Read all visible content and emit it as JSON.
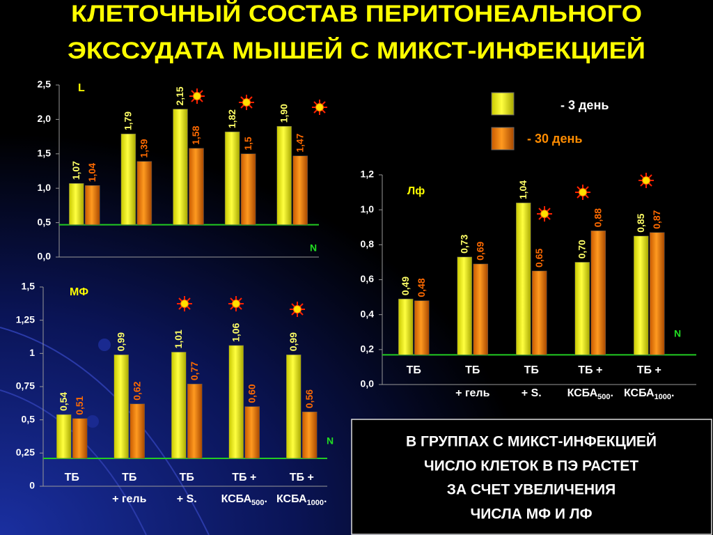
{
  "title": [
    "КЛЕТОЧНЫЙ СОСТАВ ПЕРИТОНЕАЛЬНОГО",
    "ЭКССУДАТА МЫШЕЙ С МИКСТ-ИНФЕКЦИЕЙ"
  ],
  "note": [
    "В ГРУППАХ С МИКСТ-ИНФЕКЦИЕЙ",
    "ЧИСЛО КЛЕТОК В ПЭ РАСТЕТ",
    "ЗА СЧЕТ УВЕЛИЧЕНИЯ",
    "ЧИСЛА МФ И ЛФ"
  ],
  "chart_data": [
    {
      "type": "bar",
      "label": "L",
      "norm": 0.47,
      "norm_label": "N",
      "categories": [
        null,
        null,
        null,
        null,
        null
      ],
      "series": [
        {
          "name": "- 3 день",
          "color": "#ffff00",
          "values": [
            1.07,
            1.79,
            2.15,
            1.82,
            1.9
          ],
          "value_labels": [
            "1,07",
            "1,79",
            "2,15",
            "1,82",
            "1,90"
          ]
        },
        {
          "name": "- 30 день",
          "color": "#ff8c00",
          "values": [
            1.04,
            1.39,
            1.58,
            1.5,
            1.47
          ],
          "value_labels": [
            "1,04",
            "1,39",
            "1,58",
            "1,5",
            "1,47"
          ]
        }
      ],
      "ylim": [
        0,
        2.5
      ],
      "yticks": [
        {
          "value": 0,
          "label": "0,0"
        },
        {
          "value": 0.5,
          "label": "0,5"
        },
        {
          "value": 1,
          "label": "1,0"
        },
        {
          "value": 1.5,
          "label": "1,5"
        },
        {
          "value": 2,
          "label": "2,0"
        },
        {
          "value": 2.5,
          "label": "2,5"
        }
      ]
    },
    {
      "type": "bar",
      "label": "Лф",
      "norm": 0.17,
      "norm_label": "N",
      "categories": [
        [
          "ТБ"
        ],
        [
          "ТБ",
          "+ гель"
        ],
        [
          "ТБ",
          "+ S."
        ],
        [
          "ТБ +",
          "КСБА500."
        ],
        [
          "ТБ +",
          "КСБА1000."
        ]
      ],
      "series": [
        {
          "color": "#ffff00",
          "values": [
            0.49,
            0.73,
            1.04,
            0.7,
            0.85
          ],
          "value_labels": [
            "0,49",
            "0,73",
            "1,04",
            "0,70",
            "0,85"
          ]
        },
        {
          "color": "#ff8c00",
          "values": [
            0.48,
            0.69,
            0.65,
            0.88,
            0.87
          ],
          "value_labels": [
            "0,48",
            "0,69",
            "0,65",
            "0,88",
            "0,87"
          ]
        }
      ],
      "ylim": [
        0,
        1.2
      ],
      "yticks": [
        {
          "value": 0,
          "label": "0,0"
        },
        {
          "value": 0.2,
          "label": "0,2"
        },
        {
          "value": 0.4,
          "label": "0,4"
        },
        {
          "value": 0.6,
          "label": "0,6"
        },
        {
          "value": 0.8,
          "label": "0,8"
        },
        {
          "value": 1,
          "label": "1,0"
        },
        {
          "value": 1.2,
          "label": "1,2"
        }
      ]
    },
    {
      "type": "bar",
      "label": "МФ",
      "norm": 0.21,
      "norm_label": "N",
      "categories": [
        [
          "ТБ"
        ],
        [
          "ТБ",
          "+ гель"
        ],
        [
          "ТБ",
          "+ S."
        ],
        [
          "ТБ +",
          "КСБА500."
        ],
        [
          "ТБ +",
          "КСБА1000."
        ]
      ],
      "series": [
        {
          "color": "#ffff00",
          "values": [
            0.54,
            0.99,
            1.01,
            1.06,
            0.99
          ],
          "value_labels": [
            "0,54",
            "0,99",
            "1,01",
            "1,06",
            "0,99"
          ]
        },
        {
          "color": "#ff8c00",
          "values": [
            0.51,
            0.62,
            0.77,
            0.6,
            0.56
          ],
          "value_labels": [
            "0,51",
            "0,62",
            "0,77",
            "0,60",
            "0,56"
          ]
        }
      ],
      "ylim": [
        0,
        1.5
      ],
      "yticks": [
        0,
        {
          "value": 0.25,
          "label": "0,25"
        },
        {
          "value": 0.5,
          "label": "0,5"
        },
        {
          "value": 0.75,
          "label": "0,75"
        },
        1,
        {
          "value": 1.25,
          "label": "1,25"
        },
        {
          "value": 1.5,
          "label": "1,5"
        }
      ]
    }
  ]
}
